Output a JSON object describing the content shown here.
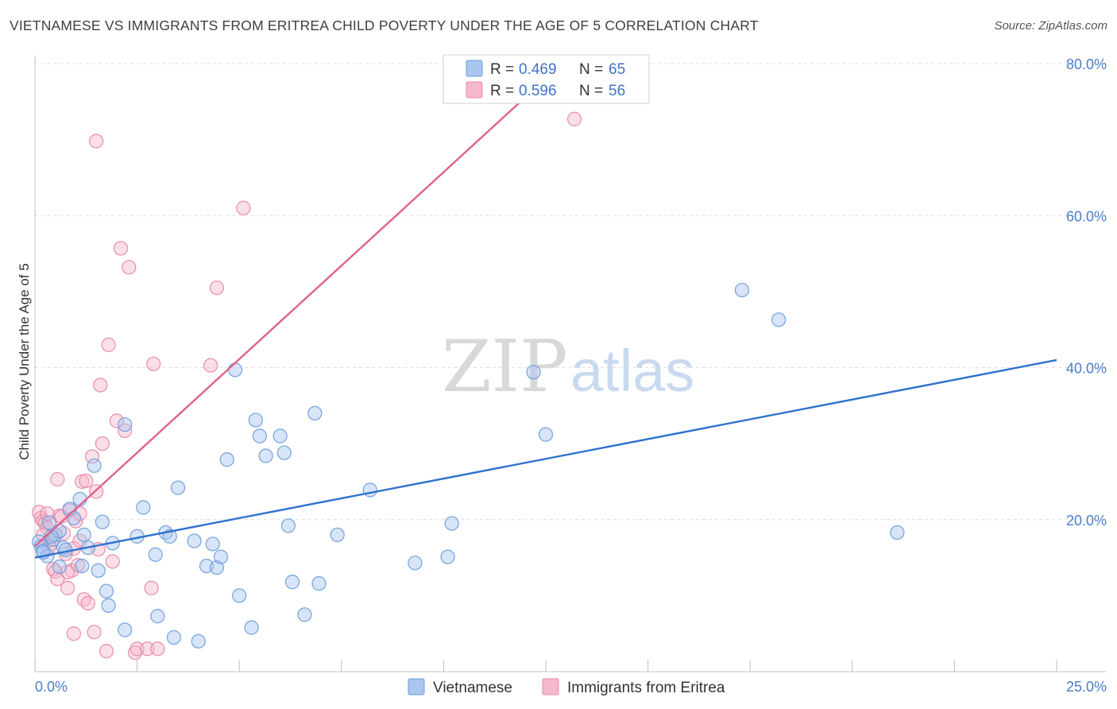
{
  "title": "VIETNAMESE VS IMMIGRANTS FROM ERITREA CHILD POVERTY UNDER THE AGE OF 5 CORRELATION CHART",
  "source": "Source: ZipAtlas.com",
  "watermark": {
    "zip": "ZIP",
    "atlas": "atlas"
  },
  "colors": {
    "vietnamese_fill": "#a9c6ef",
    "vietnamese_stroke": "#6f9fdc",
    "vietnamese_line": "#2f72cf",
    "eritrea_fill": "#f6b8cb",
    "eritrea_stroke": "#e88aa8",
    "eritrea_line": "#e0608d",
    "tick_text": "#4a7ec8",
    "grid": "#dddddd"
  },
  "legend": {
    "r_label": "R =",
    "n_label": "N =",
    "entries": [
      {
        "r": "0.469",
        "n": "65"
      },
      {
        "r": "0.596",
        "n": "56"
      }
    ]
  },
  "chart_data": {
    "type": "scatter",
    "xlabel": "",
    "ylabel": "Child Poverty Under the Age of 5",
    "xlim": [
      0,
      25
    ],
    "ylim": [
      0,
      80
    ],
    "x_tick_labels": [
      "0.0%",
      "25.0%"
    ],
    "y_ticks": [
      20,
      40,
      60,
      80
    ],
    "y_tick_labels": [
      "20.0%",
      "40.0%",
      "60.0%",
      "80.0%"
    ],
    "grid": true,
    "legend_position": "top-center",
    "series": [
      {
        "name": "Vietnamese",
        "trendline": {
          "x": [
            0,
            25
          ],
          "y": [
            15.0,
            41.0
          ]
        },
        "points": [
          [
            0.1,
            17.1
          ],
          [
            0.15,
            16.5
          ],
          [
            0.2,
            15.9
          ],
          [
            0.3,
            15.2
          ],
          [
            0.35,
            19.6
          ],
          [
            0.45,
            17.4
          ],
          [
            0.5,
            18.0
          ],
          [
            0.6,
            18.5
          ],
          [
            0.7,
            16.3
          ],
          [
            0.75,
            16.0
          ],
          [
            0.85,
            21.4
          ],
          [
            0.95,
            20.2
          ],
          [
            1.1,
            22.7
          ],
          [
            1.2,
            18.0
          ],
          [
            1.3,
            16.3
          ],
          [
            1.45,
            27.1
          ],
          [
            1.55,
            13.3
          ],
          [
            1.65,
            19.7
          ],
          [
            1.8,
            8.7
          ],
          [
            1.9,
            16.9
          ],
          [
            2.2,
            32.5
          ],
          [
            2.5,
            17.8
          ],
          [
            2.65,
            21.6
          ],
          [
            2.95,
            15.4
          ],
          [
            3.2,
            18.3
          ],
          [
            3.3,
            17.8
          ],
          [
            3.5,
            24.2
          ],
          [
            3.9,
            17.2
          ],
          [
            4.2,
            13.9
          ],
          [
            4.35,
            16.8
          ],
          [
            4.45,
            13.7
          ],
          [
            4.55,
            15.1
          ],
          [
            4.7,
            27.9
          ],
          [
            4.9,
            39.7
          ],
          [
            5.0,
            10.0
          ],
          [
            5.4,
            33.1
          ],
          [
            5.5,
            31.0
          ],
          [
            5.65,
            28.4
          ],
          [
            6.0,
            31.0
          ],
          [
            6.1,
            28.8
          ],
          [
            6.2,
            19.2
          ],
          [
            6.3,
            11.8
          ],
          [
            6.6,
            7.5
          ],
          [
            6.85,
            34.0
          ],
          [
            6.95,
            11.6
          ],
          [
            7.4,
            18.0
          ],
          [
            8.2,
            23.9
          ],
          [
            9.3,
            14.3
          ],
          [
            10.1,
            15.1
          ],
          [
            10.2,
            19.5
          ],
          [
            12.2,
            39.4
          ],
          [
            12.5,
            31.2
          ],
          [
            17.3,
            50.2
          ],
          [
            18.2,
            46.3
          ],
          [
            21.1,
            18.3
          ],
          [
            0.2,
            15.7
          ],
          [
            0.6,
            13.8
          ],
          [
            0.4,
            17.8
          ],
          [
            1.15,
            13.9
          ],
          [
            1.75,
            10.6
          ],
          [
            3.0,
            7.3
          ],
          [
            3.4,
            4.5
          ],
          [
            4.0,
            4.0
          ],
          [
            5.3,
            5.8
          ],
          [
            2.2,
            5.5
          ]
        ]
      },
      {
        "name": "Immigrants from Eritrea",
        "trendline": {
          "x": [
            0,
            12.9
          ],
          "y": [
            16.5,
            80.0
          ]
        },
        "points": [
          [
            0.1,
            21.0
          ],
          [
            0.15,
            20.2
          ],
          [
            0.2,
            19.8
          ],
          [
            0.25,
            19.5
          ],
          [
            0.3,
            18.9
          ],
          [
            0.35,
            17.3
          ],
          [
            0.4,
            16.9
          ],
          [
            0.45,
            13.5
          ],
          [
            0.5,
            13.2
          ],
          [
            0.55,
            12.2
          ],
          [
            0.6,
            20.5
          ],
          [
            0.7,
            18.2
          ],
          [
            0.75,
            15.5
          ],
          [
            0.8,
            11.0
          ],
          [
            0.85,
            21.2
          ],
          [
            0.9,
            13.3
          ],
          [
            0.95,
            16.2
          ],
          [
            1.0,
            19.8
          ],
          [
            1.05,
            14.0
          ],
          [
            1.1,
            17.2
          ],
          [
            1.15,
            25.0
          ],
          [
            1.2,
            9.5
          ],
          [
            1.3,
            9.0
          ],
          [
            1.4,
            28.3
          ],
          [
            1.45,
            5.2
          ],
          [
            1.5,
            23.7
          ],
          [
            1.55,
            16.1
          ],
          [
            1.6,
            37.7
          ],
          [
            1.65,
            30.0
          ],
          [
            1.8,
            43.0
          ],
          [
            1.9,
            14.5
          ],
          [
            2.0,
            33.0
          ],
          [
            2.1,
            55.7
          ],
          [
            2.2,
            31.7
          ],
          [
            2.3,
            53.2
          ],
          [
            2.45,
            2.5
          ],
          [
            2.5,
            3.0
          ],
          [
            2.75,
            3.0
          ],
          [
            2.85,
            11.0
          ],
          [
            2.9,
            40.5
          ],
          [
            3.0,
            3.0
          ],
          [
            4.3,
            40.3
          ],
          [
            4.45,
            50.5
          ],
          [
            5.1,
            61.0
          ],
          [
            13.2,
            72.7
          ],
          [
            1.5,
            69.8
          ],
          [
            0.55,
            25.3
          ],
          [
            1.25,
            25.1
          ],
          [
            0.65,
            20.4
          ],
          [
            0.3,
            20.8
          ],
          [
            1.75,
            2.7
          ],
          [
            0.95,
            5.0
          ],
          [
            0.35,
            16.4
          ],
          [
            0.2,
            18.0
          ],
          [
            0.8,
            13.1
          ],
          [
            1.1,
            20.8
          ]
        ]
      }
    ]
  }
}
